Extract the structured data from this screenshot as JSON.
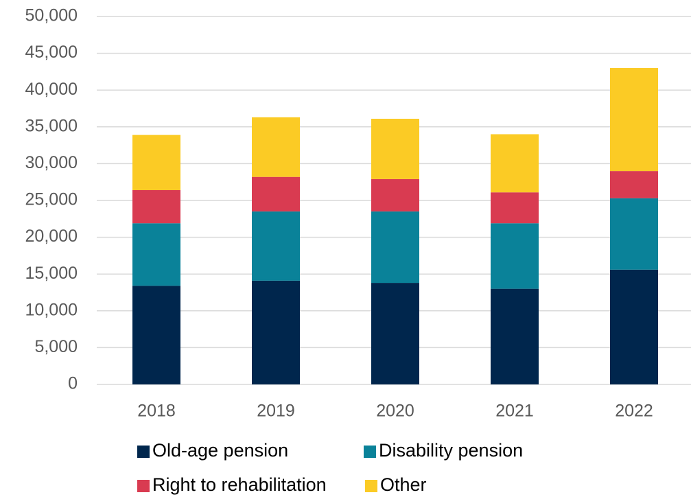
{
  "chart_data": {
    "type": "stacked_bar",
    "categories": [
      "2018",
      "2019",
      "2020",
      "2021",
      "2022"
    ],
    "series": [
      {
        "name": "Old-age pension",
        "color": "#00264d",
        "values": [
          13400,
          14100,
          13800,
          13000,
          15600
        ]
      },
      {
        "name": "Disability pension",
        "color": "#0a8299",
        "values": [
          8500,
          9400,
          9700,
          8900,
          9700
        ]
      },
      {
        "name": "Right to rehabilitation",
        "color": "#d93b51",
        "values": [
          4500,
          4700,
          4400,
          4200,
          3700
        ]
      },
      {
        "name": "Other",
        "color": "#fbcb25",
        "values": [
          7500,
          8100,
          8200,
          7900,
          14000
        ]
      }
    ],
    "ylim": [
      0,
      50000
    ],
    "yticks": [
      0,
      {
        "value": 5000,
        "label": "5,000"
      },
      {
        "value": 10000,
        "label": "10,000"
      },
      {
        "value": 15000,
        "label": "15,000"
      },
      {
        "value": 20000,
        "label": "20,000"
      },
      {
        "value": 25000,
        "label": "25,000"
      },
      {
        "value": 30000,
        "label": "30,000"
      },
      {
        "value": 35000,
        "label": "35,000"
      },
      {
        "value": 40000,
        "label": "40,000"
      },
      {
        "value": 45000,
        "label": "45,000"
      },
      {
        "value": 50000,
        "label": "50,000"
      }
    ],
    "grid": true,
    "legend": "bottom"
  }
}
